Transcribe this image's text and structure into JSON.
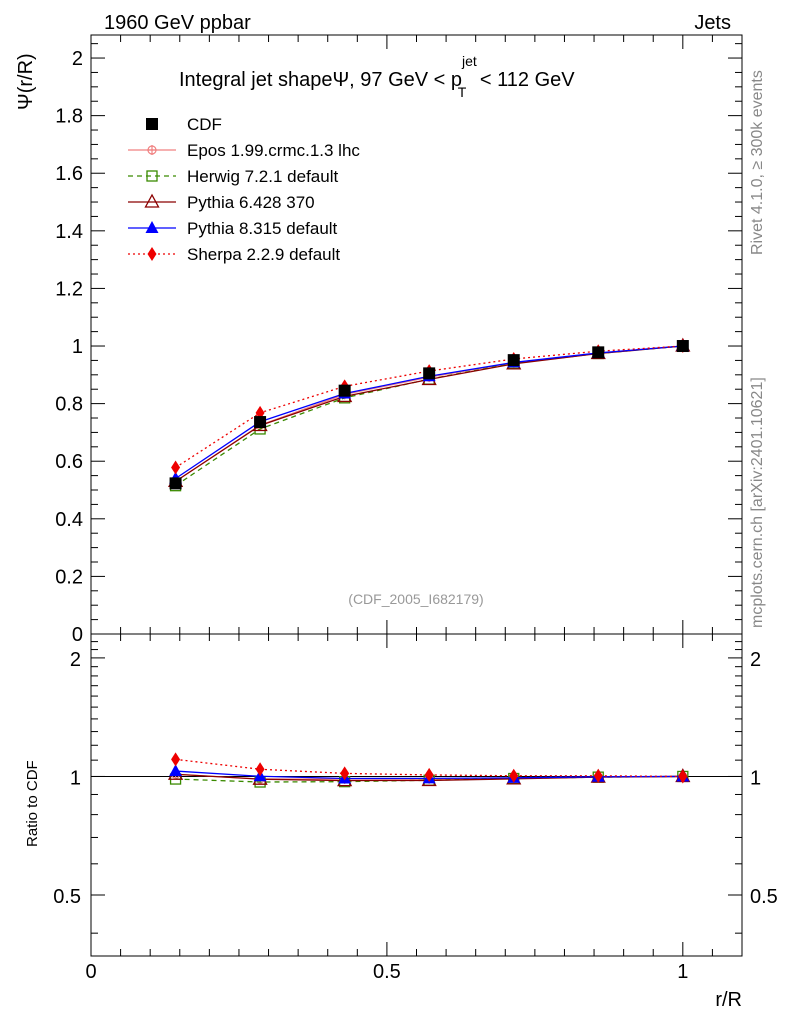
{
  "header": {
    "left": "1960 GeV ppbar",
    "right": "Jets",
    "side_top": "Rivet 4.1.0, ≥ 300k events",
    "side_bottom": "mcplots.cern.ch [arXiv:2401.10621]"
  },
  "chart_data": [
    {
      "type": "line",
      "title_main": "Integral jet shapeΨ, 97 GeV < p",
      "title_sup": "jet",
      "title_sub": "T",
      "title_tail": " < 112 GeV",
      "ylabel": "Ψ(r/R)",
      "ylim": [
        0,
        2.08
      ],
      "yticks": [
        0,
        0.2,
        0.4,
        0.6,
        0.8,
        1,
        1.2,
        1.4,
        1.6,
        1.8,
        2
      ],
      "yticklabels": [
        "0",
        "0.2",
        "0.4",
        "0.6",
        "0.8",
        "1",
        "1.2",
        "1.4",
        "1.6",
        "1.8",
        "2"
      ],
      "xlim": [
        0,
        1.1
      ],
      "watermark": "(CDF_2005_I682179)",
      "x": [
        0.1429,
        0.2857,
        0.4286,
        0.5714,
        0.7143,
        0.8571,
        1.0
      ],
      "series": [
        {
          "name": "CDF",
          "values": [
            0.523,
            0.736,
            0.845,
            0.905,
            0.951,
            0.978,
            1.0
          ],
          "color": "#000000",
          "marker": "square-filled",
          "dash": "none",
          "line": false
        },
        {
          "name": "Epos 1.99.crmc.1.3 lhc",
          "values": [
            0.53,
            0.725,
            0.832,
            0.892,
            0.942,
            0.975,
            1.0
          ],
          "color": "#f08080",
          "marker": "cross-circle",
          "dash": "solid",
          "line": true
        },
        {
          "name": "Herwig 7.2.1 default",
          "values": [
            0.515,
            0.712,
            0.82,
            0.885,
            0.94,
            0.974,
            1.0
          ],
          "color": "#3a8a00",
          "marker": "square-open",
          "dash": "dashed",
          "line": true
        },
        {
          "name": "Pythia 6.428 370",
          "values": [
            0.53,
            0.724,
            0.825,
            0.884,
            0.938,
            0.974,
            1.0
          ],
          "color": "#8b0000",
          "marker": "triangle-open",
          "dash": "solid",
          "line": true
        },
        {
          "name": "Pythia 8.315 default",
          "values": [
            0.54,
            0.737,
            0.835,
            0.895,
            0.943,
            0.976,
            1.0
          ],
          "color": "#0000ff",
          "marker": "triangle-filled",
          "dash": "solid",
          "line": true
        },
        {
          "name": "Sherpa 2.2.9 default",
          "values": [
            0.578,
            0.768,
            0.86,
            0.913,
            0.955,
            0.982,
            1.0
          ],
          "color": "#ee0000",
          "marker": "diamond-filled",
          "dash": "dotted",
          "line": true
        }
      ]
    },
    {
      "type": "line",
      "ylabel": "Ratio to CDF",
      "xlabel": "r/R",
      "ylim": [
        0.35,
        2.3
      ],
      "yticklabels": [
        "0.5",
        "1",
        "2"
      ],
      "yticks": [
        0.5,
        1,
        2
      ],
      "xlim": [
        0,
        1.1
      ],
      "xticks": [
        0,
        0.5,
        1
      ],
      "xticklabels": [
        "0",
        "0.5",
        "1"
      ],
      "x": [
        0.1429,
        0.2857,
        0.4286,
        0.5714,
        0.7143,
        0.8571,
        1.0
      ],
      "series": [
        {
          "name": "Epos 1.99.crmc.1.3 lhc",
          "values": [
            1.013,
            0.985,
            0.985,
            0.986,
            0.99,
            0.997,
            1.0
          ]
        },
        {
          "name": "Herwig 7.2.1 default",
          "values": [
            0.985,
            0.968,
            0.97,
            0.978,
            0.988,
            0.996,
            1.0
          ]
        },
        {
          "name": "Pythia 6.428 370",
          "values": [
            1.013,
            0.984,
            0.976,
            0.977,
            0.986,
            0.996,
            1.0
          ]
        },
        {
          "name": "Pythia 8.315 default",
          "values": [
            1.032,
            1.001,
            0.988,
            0.989,
            0.992,
            0.998,
            1.0
          ]
        },
        {
          "name": "Sherpa 2.2.9 default",
          "values": [
            1.105,
            1.043,
            1.018,
            1.009,
            1.004,
            1.004,
            1.0
          ]
        }
      ]
    }
  ]
}
